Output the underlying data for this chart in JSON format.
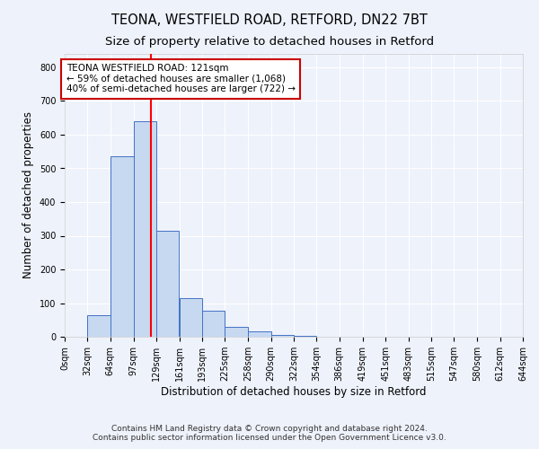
{
  "title": "TEONA, WESTFIELD ROAD, RETFORD, DN22 7BT",
  "subtitle": "Size of property relative to detached houses in Retford",
  "xlabel": "Distribution of detached houses by size in Retford",
  "ylabel": "Number of detached properties",
  "bin_edges": [
    0,
    32,
    64,
    97,
    129,
    161,
    193,
    225,
    258,
    290,
    322,
    354,
    386,
    419,
    451,
    483,
    515,
    547,
    580,
    612,
    644
  ],
  "bar_heights": [
    0,
    65,
    535,
    640,
    315,
    115,
    77,
    30,
    15,
    5,
    2,
    1,
    0,
    0,
    0,
    0,
    0,
    0,
    0,
    0
  ],
  "bar_color": "#c6d9f1",
  "bar_edge_color": "#4472c4",
  "vline_x": 121,
  "vline_color": "#ff0000",
  "annotation_line1": "TEONA WESTFIELD ROAD: 121sqm",
  "annotation_line2": "← 59% of detached houses are smaller (1,068)",
  "annotation_line3": "40% of semi-detached houses are larger (722) →",
  "annotation_box_color": "#ffffff",
  "annotation_box_edge": "#cc0000",
  "ylim": [
    0,
    840
  ],
  "yticks": [
    0,
    100,
    200,
    300,
    400,
    500,
    600,
    700,
    800
  ],
  "tick_labels": [
    "0sqm",
    "32sqm",
    "64sqm",
    "97sqm",
    "129sqm",
    "161sqm",
    "193sqm",
    "225sqm",
    "258sqm",
    "290sqm",
    "322sqm",
    "354sqm",
    "386sqm",
    "419sqm",
    "451sqm",
    "483sqm",
    "515sqm",
    "547sqm",
    "580sqm",
    "612sqm",
    "644sqm"
  ],
  "footer": "Contains HM Land Registry data © Crown copyright and database right 2024.\nContains public sector information licensed under the Open Government Licence v3.0.",
  "bg_color": "#eef2fb",
  "grid_color": "#ffffff",
  "title_fontsize": 10.5,
  "subtitle_fontsize": 9.5,
  "xlabel_fontsize": 8.5,
  "ylabel_fontsize": 8.5,
  "tick_fontsize": 7,
  "footer_fontsize": 6.5,
  "annotation_fontsize": 7.5
}
